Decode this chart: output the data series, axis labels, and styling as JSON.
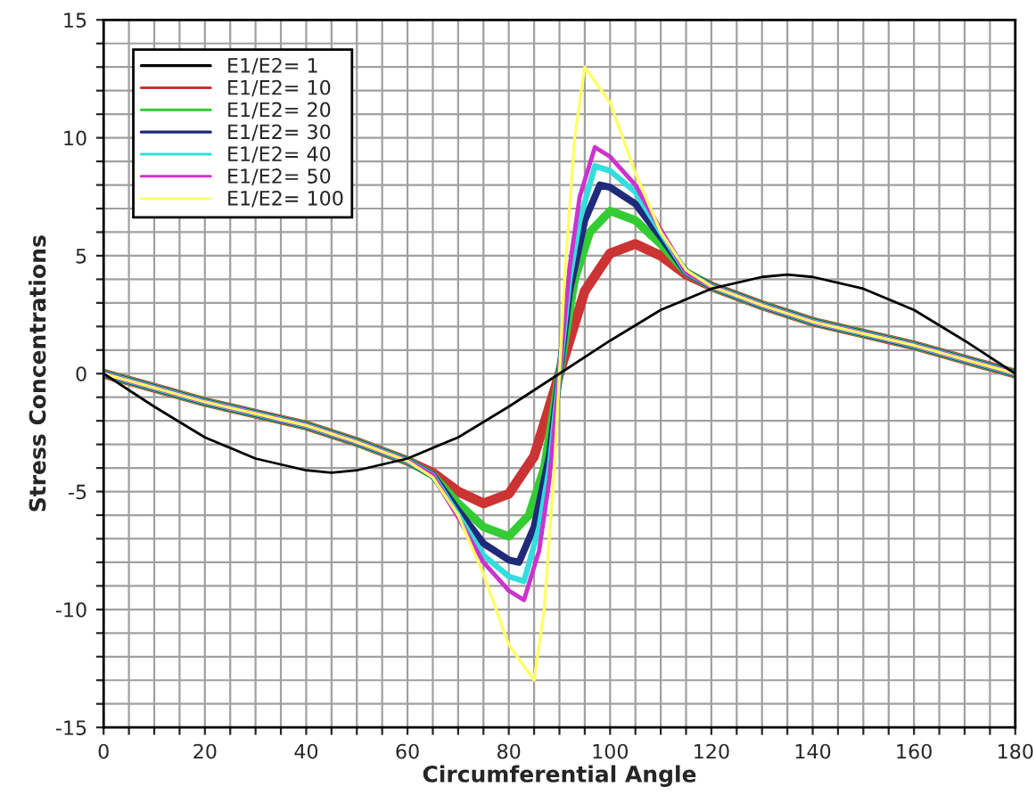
{
  "chart_data": {
    "type": "line",
    "xlabel": "Circumferential Angle",
    "ylabel": "Stress Concentrations",
    "xlim": [
      0,
      180
    ],
    "ylim": [
      -15,
      15
    ],
    "xticks": [
      0,
      {
        "value": 5,
        "label": null
      },
      {
        "value": 10,
        "label": null
      },
      {
        "value": 15,
        "label": null
      },
      20,
      {
        "value": 25,
        "label": null
      },
      {
        "value": 30,
        "label": null
      },
      {
        "value": 35,
        "label": null
      },
      40,
      {
        "value": 45,
        "label": null
      },
      {
        "value": 50,
        "label": null
      },
      {
        "value": 55,
        "label": null
      },
      60,
      {
        "value": 65,
        "label": null
      },
      {
        "value": 70,
        "label": null
      },
      {
        "value": 75,
        "label": null
      },
      80,
      {
        "value": 85,
        "label": null
      },
      {
        "value": 90,
        "label": null
      },
      {
        "value": 95,
        "label": null
      },
      100,
      {
        "value": 105,
        "label": null
      },
      {
        "value": 110,
        "label": null
      },
      {
        "value": 115,
        "label": null
      },
      120,
      {
        "value": 125,
        "label": null
      },
      {
        "value": 130,
        "label": null
      },
      {
        "value": 135,
        "label": null
      },
      140,
      {
        "value": 145,
        "label": null
      },
      {
        "value": 150,
        "label": null
      },
      {
        "value": 155,
        "label": null
      },
      160,
      {
        "value": 165,
        "label": null
      },
      {
        "value": 170,
        "label": null
      },
      {
        "value": 175,
        "label": null
      },
      180
    ],
    "yticks": [
      -15,
      {
        "value": -14,
        "label": null
      },
      {
        "value": -13,
        "label": null
      },
      {
        "value": -12,
        "label": null
      },
      {
        "value": -11,
        "label": null
      },
      -10,
      {
        "value": -9,
        "label": null
      },
      {
        "value": -8,
        "label": null
      },
      {
        "value": -7,
        "label": null
      },
      {
        "value": -6,
        "label": null
      },
      -5,
      {
        "value": -4,
        "label": null
      },
      {
        "value": -3,
        "label": null
      },
      {
        "value": -2,
        "label": null
      },
      {
        "value": -1,
        "label": null
      },
      0,
      {
        "value": 1,
        "label": null
      },
      {
        "value": 2,
        "label": null
      },
      {
        "value": 3,
        "label": null
      },
      {
        "value": 4,
        "label": null
      },
      5,
      {
        "value": 6,
        "label": null
      },
      {
        "value": 7,
        "label": null
      },
      {
        "value": 8,
        "label": null
      },
      {
        "value": 9,
        "label": null
      },
      10,
      {
        "value": 11,
        "label": null
      },
      {
        "value": 12,
        "label": null
      },
      {
        "value": 13,
        "label": null
      },
      {
        "value": 14,
        "label": null
      },
      15
    ],
    "grid": true,
    "legend": "top left",
    "marker": "none",
    "line_style": "solid",
    "series": [
      {
        "name": "E1/E2= 1",
        "color": "#000000",
        "x": [
          0,
          10,
          20,
          30,
          40,
          45,
          50,
          60,
          70,
          80,
          90,
          100,
          110,
          120,
          130,
          135,
          140,
          150,
          160,
          170,
          180
        ],
        "values": [
          0,
          -1.4,
          -2.7,
          -3.6,
          -4.1,
          -4.2,
          -4.1,
          -3.6,
          -2.7,
          -1.4,
          0,
          1.4,
          2.7,
          3.6,
          4.1,
          4.2,
          4.1,
          3.6,
          2.7,
          1.4,
          0
        ]
      },
      {
        "name": "E1/E2= 10",
        "color": "#cc3333",
        "x": [
          0,
          10,
          20,
          30,
          40,
          50,
          60,
          65,
          70,
          75,
          80,
          85,
          90,
          95,
          100,
          105,
          110,
          115,
          120,
          130,
          140,
          150,
          160,
          170,
          180
        ],
        "values": [
          0,
          -0.6,
          -1.2,
          -1.7,
          -2.2,
          -2.9,
          -3.7,
          -4.2,
          -5.0,
          -5.5,
          -5.1,
          -3.5,
          0,
          3.5,
          5.1,
          5.5,
          5.0,
          4.2,
          3.7,
          2.9,
          2.2,
          1.7,
          1.2,
          0.6,
          0
        ]
      },
      {
        "name": "E1/E2= 20",
        "color": "#33cc33",
        "x": [
          0,
          10,
          20,
          30,
          40,
          50,
          60,
          65,
          70,
          75,
          80,
          84,
          87,
          90,
          93,
          96,
          100,
          105,
          110,
          115,
          120,
          130,
          140,
          150,
          160,
          170,
          180
        ],
        "values": [
          0,
          -0.6,
          -1.2,
          -1.7,
          -2.2,
          -2.9,
          -3.7,
          -4.3,
          -5.5,
          -6.5,
          -6.9,
          -6.0,
          -4.0,
          0,
          4.0,
          6.0,
          6.9,
          6.5,
          5.5,
          4.3,
          3.7,
          2.9,
          2.2,
          1.7,
          1.2,
          0.6,
          0
        ]
      },
      {
        "name": "E1/E2= 30",
        "color": "#1f2a7a",
        "x": [
          0,
          10,
          20,
          30,
          40,
          50,
          60,
          65,
          70,
          75,
          80,
          82,
          85,
          88,
          90,
          92,
          95,
          98,
          100,
          105,
          110,
          115,
          120,
          130,
          140,
          150,
          160,
          170,
          180
        ],
        "values": [
          0,
          -0.6,
          -1.2,
          -1.7,
          -2.2,
          -2.9,
          -3.7,
          -4.3,
          -5.8,
          -7.2,
          -7.9,
          -8.0,
          -6.5,
          -3.5,
          0,
          3.5,
          6.5,
          8.0,
          7.9,
          7.2,
          5.8,
          4.3,
          3.7,
          2.9,
          2.2,
          1.7,
          1.2,
          0.6,
          0
        ]
      },
      {
        "name": "E1/E2= 40",
        "color": "#33dddd",
        "x": [
          0,
          10,
          20,
          30,
          40,
          50,
          60,
          65,
          70,
          75,
          80,
          83,
          86,
          88,
          90,
          92,
          94,
          97,
          100,
          105,
          110,
          115,
          120,
          130,
          140,
          150,
          160,
          170,
          180
        ],
        "values": [
          0,
          -0.6,
          -1.2,
          -1.7,
          -2.2,
          -2.9,
          -3.7,
          -4.3,
          -6.0,
          -7.7,
          -8.6,
          -8.8,
          -6.5,
          -4.0,
          0,
          4.0,
          6.5,
          8.8,
          8.6,
          7.7,
          6.0,
          4.3,
          3.7,
          2.9,
          2.2,
          1.7,
          1.2,
          0.6,
          0
        ]
      },
      {
        "name": "E1/E2= 50",
        "color": "#cc33cc",
        "x": [
          0,
          10,
          20,
          30,
          40,
          50,
          60,
          65,
          70,
          75,
          80,
          83,
          86,
          88,
          90,
          92,
          94,
          97,
          100,
          105,
          110,
          115,
          120,
          130,
          140,
          150,
          160,
          170,
          180
        ],
        "values": [
          0,
          -0.6,
          -1.2,
          -1.7,
          -2.2,
          -2.9,
          -3.7,
          -4.3,
          -6.1,
          -8.0,
          -9.2,
          -9.6,
          -7.5,
          -4.5,
          0,
          4.5,
          7.5,
          9.6,
          9.2,
          8.0,
          6.1,
          4.3,
          3.7,
          2.9,
          2.2,
          1.7,
          1.2,
          0.6,
          0
        ]
      },
      {
        "name": "E1/E2= 100",
        "color": "#ffff66",
        "x": [
          0,
          10,
          20,
          30,
          40,
          50,
          60,
          65,
          70,
          75,
          80,
          85,
          87,
          89,
          90,
          91,
          93,
          95,
          100,
          105,
          110,
          115,
          120,
          130,
          140,
          150,
          160,
          170,
          180
        ],
        "values": [
          0,
          -0.6,
          -1.2,
          -1.7,
          -2.2,
          -2.9,
          -3.7,
          -4.4,
          -6.0,
          -8.5,
          -11.5,
          -13.0,
          -10.0,
          -4.0,
          0,
          4.0,
          10.0,
          13.0,
          11.5,
          8.5,
          6.0,
          4.4,
          3.7,
          2.9,
          2.2,
          1.7,
          1.2,
          0.6,
          0
        ]
      }
    ]
  }
}
